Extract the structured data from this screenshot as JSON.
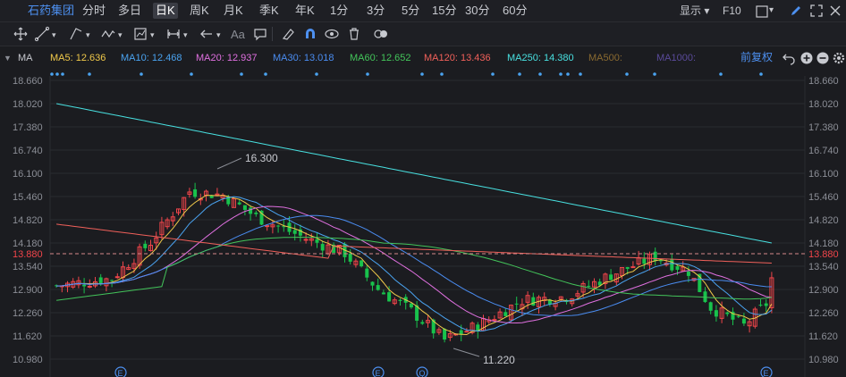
{
  "toolbar": {
    "stock_name": "石药集团",
    "periods": [
      "分时",
      "多日",
      "日K",
      "周K",
      "月K",
      "季K",
      "年K",
      "1分",
      "3分",
      "5分",
      "15分",
      "30分",
      "60分"
    ],
    "active_period": "日K",
    "display_label": "显示",
    "f10_label": "F10"
  },
  "indicator_bar": {
    "ma_label": "MA",
    "items": [
      {
        "label": "MA5: 12.636",
        "color": "#f0c94a"
      },
      {
        "label": "MA10: 12.468",
        "color": "#4aa3f0"
      },
      {
        "label": "MA20: 12.937",
        "color": "#e070e0"
      },
      {
        "label": "MA30: 13.018",
        "color": "#4a8cf0"
      },
      {
        "label": "MA60: 12.652",
        "color": "#43c45a"
      },
      {
        "label": "MA120: 13.436",
        "color": "#f0605a"
      },
      {
        "label": "MA250: 14.380",
        "color": "#48e0e0"
      },
      {
        "label": "MA500:",
        "color": "#8a6a30"
      },
      {
        "label": "MA1000:",
        "color": "#5a4a9a"
      }
    ],
    "adjust_label": "前复权"
  },
  "axis": {
    "ticks": [
      "18.660",
      "18.020",
      "17.380",
      "16.740",
      "16.100",
      "15.460",
      "14.820",
      "14.180",
      "13.540",
      "12.900",
      "12.260",
      "11.620",
      "10.980"
    ],
    "current_price": "13.880",
    "high_annotation": "16.300",
    "low_annotation": "11.220"
  },
  "event_markers": [
    "E",
    "E",
    "Q",
    "E"
  ],
  "colors": {
    "up": "#f0454a",
    "down": "#18c24c",
    "price_line": "#f0454a"
  },
  "chart_data": {
    "type": "candlestick",
    "ylim": [
      10.98,
      18.66
    ],
    "series_count": 100,
    "ma250_range": [
      18.02,
      14.18
    ]
  }
}
